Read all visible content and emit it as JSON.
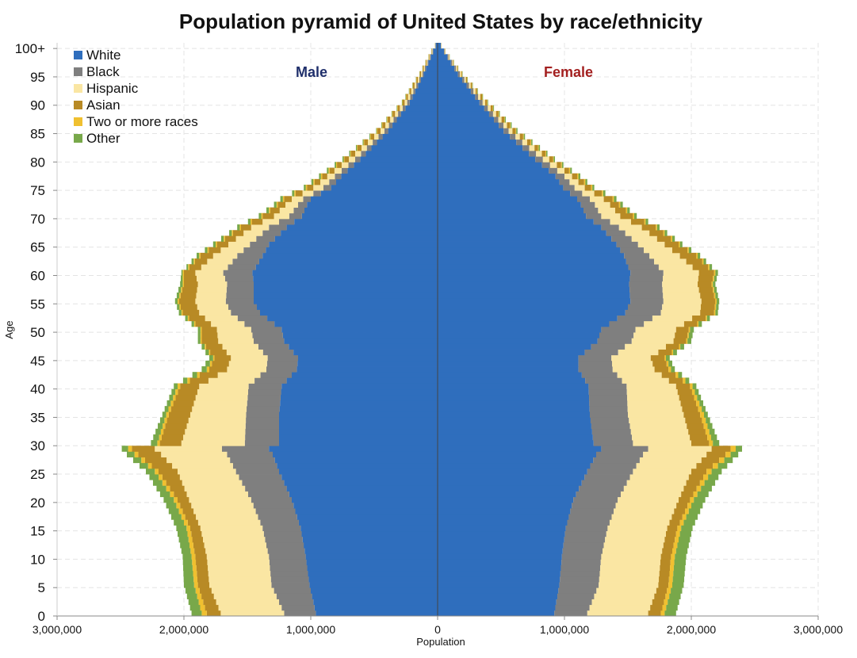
{
  "chart_data": {
    "type": "bar",
    "orientation": "horizontal-pyramid",
    "stacked": true,
    "title": "Population pyramid of United States by race/ethnicity",
    "xlabel": "Population",
    "ylabel": "Age",
    "sides": {
      "left": "Male",
      "right": "Female"
    },
    "side_colors": {
      "left": "#1f2f6b",
      "right": "#a32020"
    },
    "xlim": [
      -3000000,
      3000000
    ],
    "ylim": [
      0,
      101
    ],
    "x_ticks": [
      {
        "value": -3000000,
        "label": "3,000,000"
      },
      {
        "value": -2000000,
        "label": "2,000,000"
      },
      {
        "value": -1000000,
        "label": "1,000,000"
      },
      {
        "value": 0,
        "label": "0"
      },
      {
        "value": 1000000,
        "label": "1,000,000"
      },
      {
        "value": 2000000,
        "label": "2,000,000"
      },
      {
        "value": 3000000,
        "label": "3,000,000"
      }
    ],
    "y_ticks": [
      {
        "value": 0,
        "label": "0"
      },
      {
        "value": 5,
        "label": "5"
      },
      {
        "value": 10,
        "label": "10"
      },
      {
        "value": 15,
        "label": "15"
      },
      {
        "value": 20,
        "label": "20"
      },
      {
        "value": 25,
        "label": "25"
      },
      {
        "value": 30,
        "label": "30"
      },
      {
        "value": 35,
        "label": "35"
      },
      {
        "value": 40,
        "label": "40"
      },
      {
        "value": 45,
        "label": "45"
      },
      {
        "value": 50,
        "label": "50"
      },
      {
        "value": 55,
        "label": "55"
      },
      {
        "value": 60,
        "label": "60"
      },
      {
        "value": 65,
        "label": "65"
      },
      {
        "value": 70,
        "label": "70"
      },
      {
        "value": 75,
        "label": "75"
      },
      {
        "value": 80,
        "label": "80"
      },
      {
        "value": 85,
        "label": "85"
      },
      {
        "value": 90,
        "label": "90"
      },
      {
        "value": 95,
        "label": "95"
      },
      {
        "value": 100,
        "label": "100+"
      }
    ],
    "grid": true,
    "legend_position": "top-left",
    "series": [
      {
        "name": "White",
        "color": "#2f6ebd"
      },
      {
        "name": "Black",
        "color": "#7f7f7f"
      },
      {
        "name": "Hispanic",
        "color": "#fae6a3"
      },
      {
        "name": "Asian",
        "color": "#b88a25"
      },
      {
        "name": "Two or more races",
        "color": "#f0c030"
      },
      {
        "name": "Other",
        "color": "#78a84a"
      }
    ],
    "profile_ages": [
      0,
      5,
      10,
      15,
      20,
      25,
      28,
      29,
      30,
      35,
      40,
      43,
      45,
      48,
      50,
      53,
      55,
      58,
      60,
      63,
      65,
      68,
      70,
      72,
      73,
      75,
      77,
      80,
      85,
      90,
      95,
      99,
      100
    ],
    "male_cumulative": {
      "White": [
        960000,
        1010000,
        1040000,
        1080000,
        1150000,
        1250000,
        1300000,
        1330000,
        1250000,
        1250000,
        1230000,
        1110000,
        1100000,
        1210000,
        1230000,
        1400000,
        1450000,
        1450000,
        1460000,
        1380000,
        1330000,
        1190000,
        1070000,
        1030000,
        1000000,
        840000,
        760000,
        610000,
        390000,
        220000,
        110000,
        35000,
        15000
      ],
      "Black": [
        1210000,
        1310000,
        1330000,
        1380000,
        1470000,
        1590000,
        1660000,
        1700000,
        1520000,
        1510000,
        1490000,
        1350000,
        1340000,
        1450000,
        1470000,
        1630000,
        1670000,
        1660000,
        1690000,
        1580000,
        1480000,
        1330000,
        1170000,
        1100000,
        1060000,
        900000,
        810000,
        650000,
        420000,
        240000,
        120000,
        40000,
        18000
      ],
      "Hispanic": [
        1710000,
        1800000,
        1820000,
        1870000,
        1960000,
        2050000,
        2180000,
        2230000,
        2020000,
        1950000,
        1880000,
        1660000,
        1630000,
        1730000,
        1740000,
        1880000,
        1910000,
        1890000,
        1910000,
        1770000,
        1650000,
        1470000,
        1290000,
        1200000,
        1150000,
        980000,
        870000,
        700000,
        450000,
        260000,
        130000,
        44000,
        20000
      ],
      "Asian": [
        1820000,
        1890000,
        1910000,
        1950000,
        2050000,
        2200000,
        2360000,
        2410000,
        2190000,
        2120000,
        2030000,
        1800000,
        1760000,
        1860000,
        1860000,
        2010000,
        2040000,
        2000000,
        2000000,
        1870000,
        1740000,
        1550000,
        1380000,
        1260000,
        1210000,
        1030000,
        910000,
        735000,
        475000,
        275000,
        140000,
        47000,
        21000
      ],
      "Two or more races": [
        1860000,
        1920000,
        1940000,
        1980000,
        2080000,
        2230000,
        2390000,
        2440000,
        2210000,
        2140000,
        2050000,
        1820000,
        1770000,
        1870000,
        1870000,
        2020000,
        2050000,
        2010000,
        2010000,
        1880000,
        1750000,
        1560000,
        1390000,
        1270000,
        1220000,
        1040000,
        920000,
        740000,
        480000,
        278000,
        142000,
        48000,
        21500
      ],
      "Other": [
        1940000,
        2000000,
        2010000,
        2060000,
        2160000,
        2300000,
        2450000,
        2490000,
        2260000,
        2170000,
        2080000,
        1860000,
        1800000,
        1890000,
        1890000,
        2040000,
        2070000,
        2030000,
        2020000,
        1900000,
        1770000,
        1580000,
        1410000,
        1290000,
        1240000,
        1055000,
        935000,
        750000,
        485000,
        282000,
        144000,
        49000,
        22000
      ]
    },
    "female_cumulative": {
      "White": [
        920000,
        960000,
        980000,
        1010000,
        1070000,
        1180000,
        1250000,
        1290000,
        1230000,
        1200000,
        1190000,
        1110000,
        1110000,
        1260000,
        1290000,
        1480000,
        1520000,
        1510000,
        1520000,
        1470000,
        1410000,
        1290000,
        1170000,
        1130000,
        1100000,
        990000,
        930000,
        770000,
        520000,
        330000,
        160000,
        50000,
        25000
      ],
      "Black": [
        1180000,
        1270000,
        1290000,
        1340000,
        1420000,
        1540000,
        1620000,
        1660000,
        1540000,
        1500000,
        1490000,
        1380000,
        1370000,
        1530000,
        1560000,
        1760000,
        1780000,
        1770000,
        1780000,
        1670000,
        1580000,
        1430000,
        1290000,
        1240000,
        1200000,
        1080000,
        1000000,
        830000,
        560000,
        355000,
        175000,
        55000,
        27000
      ],
      "Hispanic": [
        1660000,
        1740000,
        1760000,
        1810000,
        1900000,
        2000000,
        2120000,
        2160000,
        2000000,
        1940000,
        1880000,
        1710000,
        1680000,
        1860000,
        1880000,
        2070000,
        2080000,
        2050000,
        2060000,
        1910000,
        1790000,
        1610000,
        1440000,
        1360000,
        1310000,
        1160000,
        1060000,
        880000,
        590000,
        375000,
        185000,
        58000,
        28000
      ],
      "Asian": [
        1760000,
        1820000,
        1840000,
        1890000,
        1990000,
        2120000,
        2270000,
        2310000,
        2140000,
        2070000,
        1990000,
        1820000,
        1790000,
        1960000,
        1980000,
        2180000,
        2190000,
        2160000,
        2180000,
        2040000,
        1900000,
        1720000,
        1540000,
        1430000,
        1380000,
        1210000,
        1100000,
        910000,
        615000,
        390000,
        192000,
        60000,
        29000
      ],
      "Two or more races": [
        1790000,
        1850000,
        1870000,
        1920000,
        2020000,
        2160000,
        2310000,
        2350000,
        2170000,
        2100000,
        2010000,
        1840000,
        1800000,
        1970000,
        1990000,
        2190000,
        2200000,
        2170000,
        2190000,
        2050000,
        1910000,
        1730000,
        1550000,
        1440000,
        1390000,
        1220000,
        1110000,
        915000,
        620000,
        393000,
        194000,
        61000,
        29500
      ],
      "Other": [
        1880000,
        1940000,
        1960000,
        2010000,
        2110000,
        2240000,
        2370000,
        2400000,
        2220000,
        2130000,
        2040000,
        1870000,
        1830000,
        2000000,
        2020000,
        2210000,
        2220000,
        2190000,
        2210000,
        2070000,
        1930000,
        1750000,
        1570000,
        1460000,
        1410000,
        1235000,
        1125000,
        925000,
        630000,
        398000,
        197000,
        62000,
        30000
      ]
    }
  }
}
